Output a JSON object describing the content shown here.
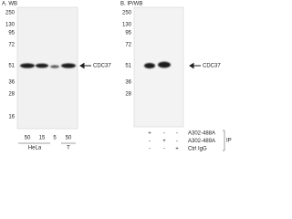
{
  "panel_a": {
    "title": "A. WB",
    "markers": [
      "250",
      "130",
      "95",
      "72",
      "51",
      "36",
      "28",
      "16"
    ],
    "target": "CDC37",
    "lanes": [
      "50",
      "15",
      "5",
      "50"
    ],
    "groups": [
      "HeLa",
      "T"
    ]
  },
  "panel_b": {
    "title": "B. IP/WB",
    "markers": [
      "250",
      "130",
      "95",
      "72",
      "51",
      "36",
      "28"
    ],
    "target": "CDC37",
    "rows": [
      {
        "label": "A302-488A",
        "cells": [
          "+",
          "-",
          "-"
        ]
      },
      {
        "label": "A302-489A",
        "cells": [
          "-",
          "+",
          "-"
        ]
      },
      {
        "label": "Ctrl IgG",
        "cells": [
          "-",
          "-",
          "+"
        ]
      }
    ],
    "side_label": "IP"
  }
}
